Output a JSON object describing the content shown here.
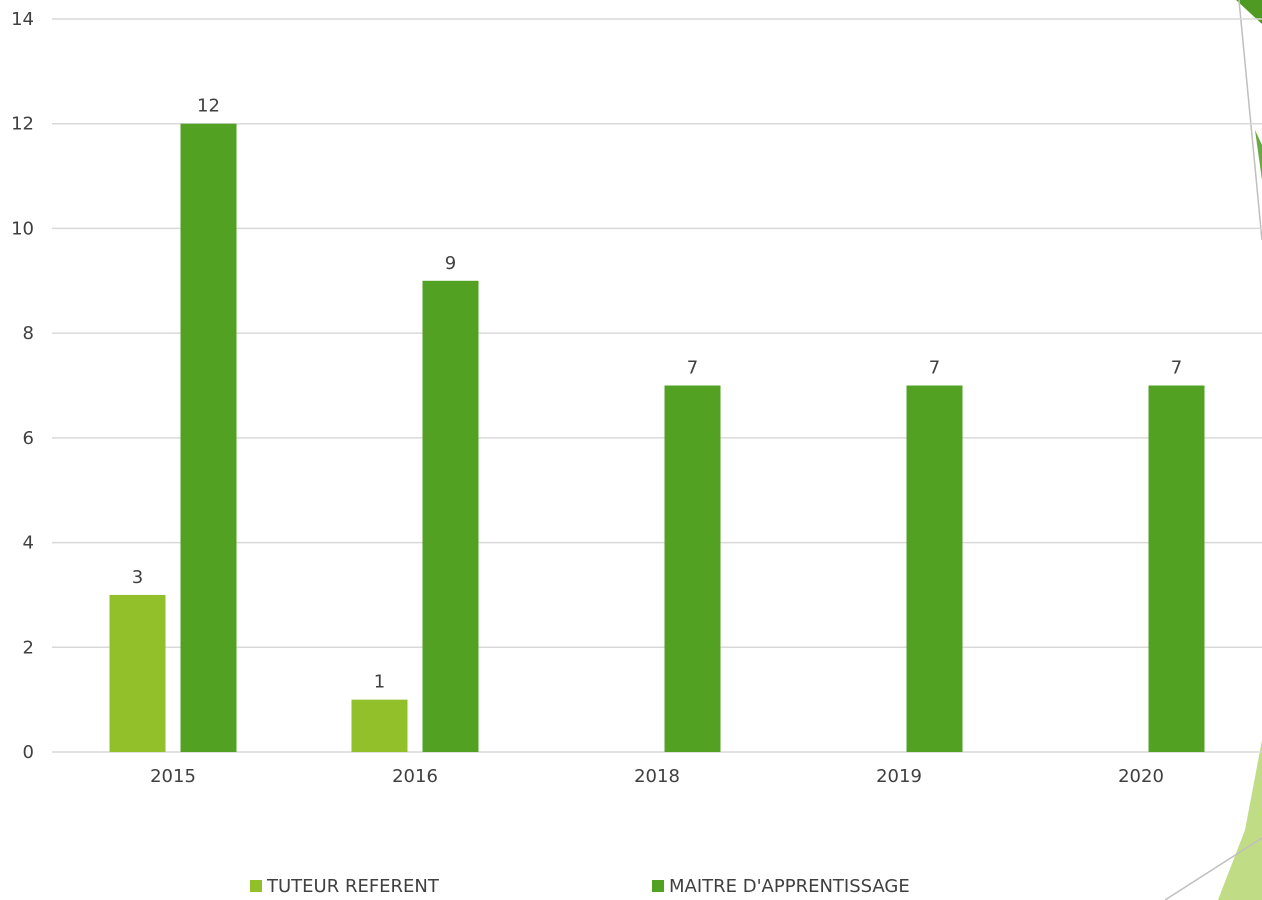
{
  "chart_data": {
    "type": "bar",
    "categories": [
      "2015",
      "2016",
      "2018",
      "2019",
      "2020"
    ],
    "series": [
      {
        "name": "TUTEUR REFERENT",
        "values": [
          3,
          1,
          null,
          null,
          null
        ],
        "color": "#92c02a"
      },
      {
        "name": "MAITRE D'APPRENTISSAGE",
        "values": [
          12,
          9,
          7,
          7,
          7
        ],
        "color": "#52a123"
      }
    ],
    "ylim": [
      0,
      14
    ],
    "yticks": [
      0,
      2,
      4,
      6,
      8,
      10,
      12,
      14
    ],
    "grid": true,
    "legend_position": "bottom",
    "data_labels": true
  },
  "decor": {
    "accent_light": "#b5d66f",
    "accent_dark": "#4f9a23",
    "line_color": "#bfbfbf"
  }
}
